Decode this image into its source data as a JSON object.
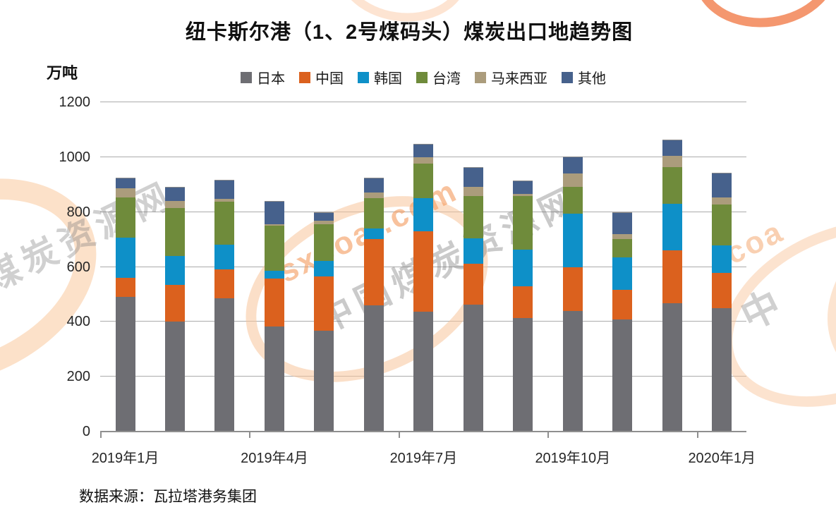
{
  "title": "纽卡斯尔港（1、2号煤码头）煤炭出口地趋势图",
  "y_axis": {
    "unit": "万吨",
    "ticks": [
      "0",
      "200",
      "400",
      "600",
      "800",
      "1000",
      "1200"
    ]
  },
  "x_axis": {
    "labels": [
      "2019年1月",
      "2019年4月",
      "2019年7月",
      "2019年10月",
      "2020年1月"
    ]
  },
  "source_note": "数据来源：瓦拉塔港务集团",
  "chart_data": {
    "type": "bar",
    "stacked": true,
    "title": "纽卡斯尔港（1、2号煤码头）煤炭出口地趋势图",
    "xlabel": "",
    "ylabel": "万吨",
    "ylim": [
      0,
      1200
    ],
    "ytick_step": 200,
    "grid": "horizontal",
    "legend_position": "top",
    "categories": [
      "2019年1月",
      "2019年2月",
      "2019年3月",
      "2019年4月",
      "2019年5月",
      "2019年6月",
      "2019年7月",
      "2019年8月",
      "2019年9月",
      "2019年10月",
      "2019年11月",
      "2019年12月",
      "2020年1月"
    ],
    "shown_x_tick_labels": [
      "2019年1月",
      "2019年4月",
      "2019年7月",
      "2019年10月",
      "2020年1月"
    ],
    "series": [
      {
        "name": "日本",
        "color": "#6E6E73",
        "values": [
          490,
          399,
          483,
          380,
          366,
          457,
          435,
          459,
          411,
          437,
          407,
          465,
          447
        ]
      },
      {
        "name": "中国",
        "color": "#DB611E",
        "values": [
          67,
          133,
          105,
          175,
          197,
          244,
          294,
          150,
          116,
          160,
          107,
          193,
          127
        ]
      },
      {
        "name": "韩国",
        "color": "#0E90C8",
        "values": [
          147,
          105,
          91,
          28,
          58,
          38,
          120,
          92,
          133,
          195,
          118,
          168,
          100
        ]
      },
      {
        "name": "台湾",
        "color": "#6F8B3B",
        "values": [
          148,
          175,
          156,
          165,
          133,
          110,
          126,
          154,
          195,
          96,
          67,
          135,
          151
        ]
      },
      {
        "name": "马来西亚",
        "color": "#AB9C7C",
        "values": [
          32,
          24,
          10,
          3,
          14,
          21,
          22,
          34,
          7,
          51,
          19,
          40,
          26
        ]
      },
      {
        "name": "其他",
        "color": "#46618C",
        "values": [
          37,
          50,
          67,
          83,
          27,
          51,
          47,
          69,
          47,
          58,
          76,
          57,
          86
        ]
      }
    ]
  },
  "watermark": {
    "brand_text": "sxcoal.com",
    "brand_fragment_right": "coa",
    "cn_text": "中国煤炭资源网",
    "cn_text_left": "煤炭资源网",
    "cn_char_right": "中",
    "orange_text_color": "#F39D61",
    "pale_arc_color": "#F8C49B",
    "strong_arc_color": "#F17D4B",
    "gray_text_color": "#737373"
  }
}
